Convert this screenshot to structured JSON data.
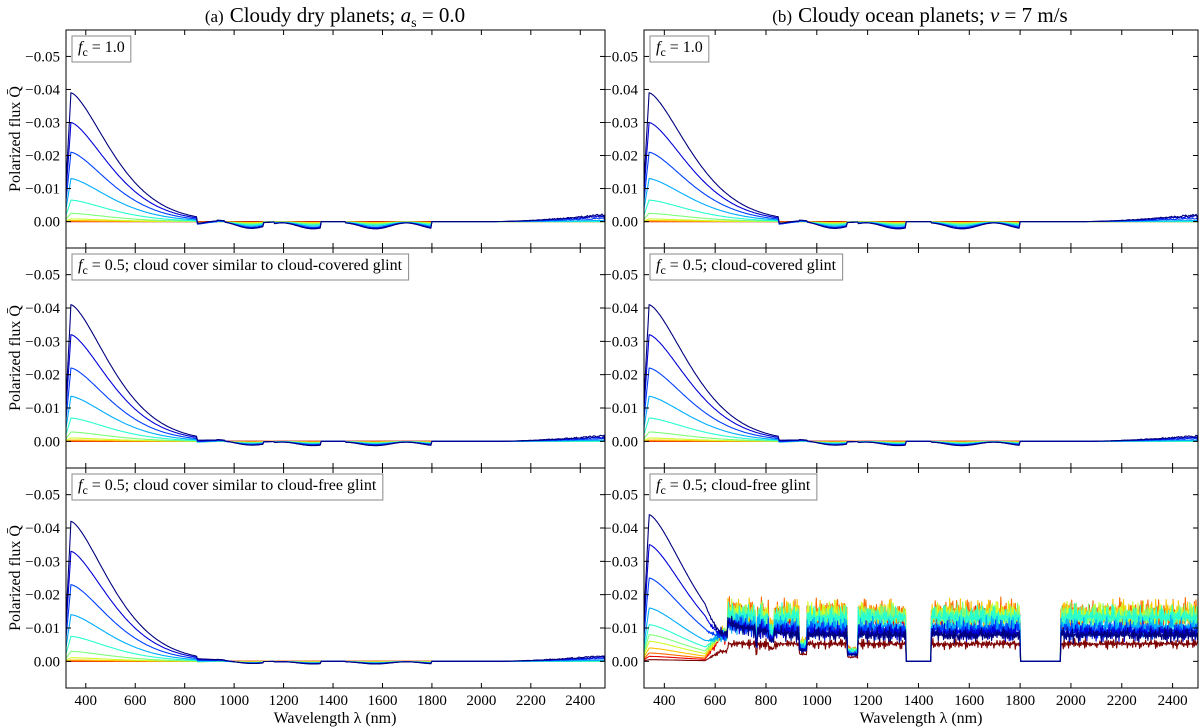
{
  "chart_data": {
    "type": "line",
    "columns": [
      {
        "label": "(a)",
        "title": "Cloudy dry planets; ",
        "math": "a",
        "sub": "s",
        "rest": " = 0.0"
      },
      {
        "label": "(b)",
        "title": "Cloudy ocean planets; ",
        "math": "v",
        "sub": "",
        "rest": " = 7 m/s"
      }
    ],
    "xlabel": "Wavelength λ (nm)",
    "ylabel": "Polarized flux Q̄",
    "xlim": [
      320,
      2500
    ],
    "ylim": [
      0.008,
      -0.058
    ],
    "xticks": [
      400,
      600,
      800,
      1000,
      1200,
      1400,
      1600,
      1800,
      2000,
      2200,
      2400
    ],
    "xticklabels": [
      "400",
      "600",
      "800",
      "1000",
      "1200",
      "1400",
      "1600",
      "1800",
      "2000",
      "2200",
      "2400"
    ],
    "yticks": [
      0.0,
      -0.01,
      -0.02,
      -0.03,
      -0.04,
      -0.05
    ],
    "yticklabels": [
      "0.00",
      "−0.01",
      "−0.02",
      "−0.03",
      "−0.04",
      "−0.05"
    ],
    "series_colors": [
      "#00007f",
      "#0000d8",
      "#0040ff",
      "#00acff",
      "#29ffce",
      "#7dff7a",
      "#ceff29",
      "#ffc400",
      "#ff6800",
      "#e80000",
      "#7f0000"
    ],
    "panels": [
      {
        "id": "a1",
        "legend": {
          "f": "f",
          "sub": "c",
          "rest": " = 1.0"
        },
        "peaks": [
          -0.039,
          -0.03,
          -0.021,
          -0.013,
          -0.0065,
          -0.0025,
          -0.0008,
          -0.0003,
          -0.0001,
          0.0,
          0.0
        ],
        "nir_pos": [
          0.0022,
          0.002,
          0.0018,
          0.0014,
          0.001,
          0.0007,
          0.0005,
          0.0003,
          0.0002,
          0.0001,
          0.0
        ],
        "swir_neg": [
          -0.0025,
          -0.002,
          -0.0012,
          -0.0004,
          0.0,
          0.0,
          0.0,
          0.0,
          0.0,
          0.0,
          0.0
        ]
      },
      {
        "id": "b1",
        "legend": {
          "f": "f",
          "sub": "c",
          "rest": " = 1.0"
        },
        "peaks": [
          -0.039,
          -0.03,
          -0.021,
          -0.013,
          -0.0065,
          -0.0025,
          -0.0008,
          -0.0003,
          -0.0001,
          0.0,
          0.0
        ],
        "nir_pos": [
          0.0022,
          0.002,
          0.0018,
          0.0014,
          0.001,
          0.0007,
          0.0005,
          0.0003,
          0.0002,
          0.0001,
          0.0
        ],
        "swir_neg": [
          -0.0025,
          -0.002,
          -0.0012,
          -0.0004,
          0.0,
          0.0,
          0.0,
          0.0,
          0.0,
          0.0,
          0.0
        ]
      },
      {
        "id": "a2",
        "legend": {
          "f": "f",
          "sub": "c",
          "rest": " = 0.5; cloud cover similar to cloud-covered glint"
        },
        "peaks": [
          -0.041,
          -0.032,
          -0.022,
          -0.0135,
          -0.007,
          -0.0028,
          -0.001,
          -0.0004,
          -0.0001,
          0.0,
          0.0
        ],
        "nir_pos": [
          0.0013,
          0.0012,
          0.001,
          0.0008,
          0.0006,
          0.0004,
          0.0003,
          0.0002,
          0.0001,
          0.0,
          0.0
        ],
        "swir_neg": [
          -0.002,
          -0.0015,
          -0.001,
          -0.0004,
          0.0,
          0.0,
          0.0,
          0.0,
          0.0,
          0.0,
          0.0
        ]
      },
      {
        "id": "b2",
        "legend": {
          "f": "f",
          "sub": "c",
          "rest": " = 0.5; cloud-covered glint"
        },
        "peaks": [
          -0.041,
          -0.032,
          -0.022,
          -0.0135,
          -0.007,
          -0.0028,
          -0.001,
          -0.0004,
          -0.0001,
          0.0,
          0.0
        ],
        "nir_pos": [
          0.0013,
          0.0012,
          0.001,
          0.0008,
          0.0006,
          0.0004,
          0.0003,
          0.0002,
          0.0001,
          0.0,
          0.0
        ],
        "swir_neg": [
          -0.002,
          -0.0015,
          -0.001,
          -0.0004,
          0.0,
          0.0,
          0.0,
          0.0,
          0.0,
          0.0,
          0.0
        ]
      },
      {
        "id": "a3",
        "legend": {
          "f": "f",
          "sub": "c",
          "rest": " = 0.5; cloud cover similar to cloud-free glint"
        },
        "peaks": [
          -0.042,
          -0.033,
          -0.023,
          -0.014,
          -0.0075,
          -0.003,
          -0.0011,
          -0.0004,
          -0.0001,
          0.0,
          0.0
        ],
        "nir_pos": [
          0.0008,
          0.0007,
          0.0006,
          0.0005,
          0.0004,
          0.0003,
          0.0002,
          0.0001,
          0.0,
          0.0,
          0.0
        ],
        "swir_neg": [
          -0.002,
          -0.0015,
          -0.001,
          -0.0004,
          0.0,
          0.0,
          0.0,
          0.0,
          0.0,
          0.0,
          0.0
        ]
      },
      {
        "id": "b3",
        "legend": {
          "f": "f",
          "sub": "c",
          "rest": " = 0.5; cloud-free glint"
        },
        "peaks": [
          -0.044,
          -0.035,
          -0.025,
          -0.016,
          -0.011,
          -0.008,
          -0.006,
          -0.004,
          -0.0025,
          -0.0015,
          -0.0005
        ],
        "glint": [
          -0.0105,
          -0.0115,
          -0.0125,
          -0.014,
          -0.0175,
          -0.018,
          -0.0185,
          -0.019,
          -0.0195,
          -0.017,
          -0.007
        ],
        "glint_lowtail": [
          -0.005,
          -0.006,
          -0.007,
          -0.009,
          -0.013,
          -0.014,
          -0.016,
          -0.018,
          -0.019,
          -0.016,
          -0.006
        ]
      }
    ]
  }
}
